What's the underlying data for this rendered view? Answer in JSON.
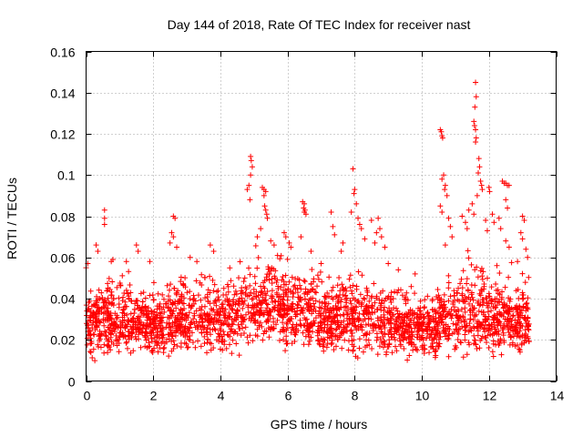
{
  "chart_data": {
    "type": "scatter",
    "title": "Day 144 of 2018, Rate Of TEC Index for receiver nast",
    "xlabel": "GPS time / hours",
    "ylabel": "ROTI / TECUs",
    "xlim": [
      0,
      14
    ],
    "ylim": [
      0,
      0.16
    ],
    "xticks": [
      0,
      2,
      4,
      6,
      8,
      10,
      12,
      14
    ],
    "xtick_labels": [
      "0",
      "2",
      "4",
      "6",
      "8",
      "10",
      "12",
      "14"
    ],
    "yticks": [
      0,
      0.02,
      0.04,
      0.06,
      0.08,
      0.1,
      0.12,
      0.14,
      0.16
    ],
    "ytick_labels": [
      "0",
      "0.02",
      "0.04",
      "0.06",
      "0.08",
      "0.1",
      "0.12",
      "0.14",
      "0.16"
    ],
    "grid": true,
    "marker": "+",
    "color": "#ff0000",
    "x_extent": [
      0,
      13.2
    ],
    "series": [
      {
        "name": "ROTI",
        "envelope": {
          "x": [
            0,
            0.5,
            1,
            1.5,
            2,
            2.5,
            3,
            3.5,
            4,
            4.5,
            5,
            5.5,
            6,
            6.5,
            7,
            7.5,
            8,
            8.5,
            9,
            9.5,
            10,
            10.5,
            11,
            11.5,
            12,
            12.5,
            13,
            13.2
          ],
          "low": [
            0.008,
            0.008,
            0.008,
            0.009,
            0.008,
            0.008,
            0.01,
            0.01,
            0.009,
            0.01,
            0.012,
            0.013,
            0.012,
            0.011,
            0.01,
            0.01,
            0.009,
            0.009,
            0.008,
            0.008,
            0.008,
            0.008,
            0.008,
            0.008,
            0.008,
            0.008,
            0.008,
            0.008
          ],
          "high": [
            0.048,
            0.055,
            0.05,
            0.05,
            0.045,
            0.05,
            0.053,
            0.052,
            0.05,
            0.056,
            0.062,
            0.064,
            0.06,
            0.056,
            0.05,
            0.052,
            0.054,
            0.054,
            0.05,
            0.045,
            0.045,
            0.05,
            0.058,
            0.06,
            0.058,
            0.054,
            0.05,
            0.048
          ],
          "density": 2600
        },
        "points": [
          {
            "x": 0.55,
            "y": 0.083
          },
          {
            "x": 0.55,
            "y": 0.079
          },
          {
            "x": 0.55,
            "y": 0.076
          },
          {
            "x": 0.3,
            "y": 0.066
          },
          {
            "x": 0.35,
            "y": 0.063
          },
          {
            "x": 0.0,
            "y": 0.055
          },
          {
            "x": 0.05,
            "y": 0.057
          },
          {
            "x": 0.75,
            "y": 0.058
          },
          {
            "x": 0.8,
            "y": 0.059
          },
          {
            "x": 1.5,
            "y": 0.066
          },
          {
            "x": 1.55,
            "y": 0.063
          },
          {
            "x": 1.2,
            "y": 0.058
          },
          {
            "x": 1.9,
            "y": 0.058
          },
          {
            "x": 2.6,
            "y": 0.08
          },
          {
            "x": 2.65,
            "y": 0.079
          },
          {
            "x": 2.55,
            "y": 0.072
          },
          {
            "x": 2.6,
            "y": 0.07
          },
          {
            "x": 2.5,
            "y": 0.067
          },
          {
            "x": 2.7,
            "y": 0.065
          },
          {
            "x": 3.1,
            "y": 0.06
          },
          {
            "x": 3.3,
            "y": 0.058
          },
          {
            "x": 3.7,
            "y": 0.066
          },
          {
            "x": 3.8,
            "y": 0.063
          },
          {
            "x": 4.9,
            "y": 0.109
          },
          {
            "x": 4.92,
            "y": 0.107
          },
          {
            "x": 4.95,
            "y": 0.104
          },
          {
            "x": 4.9,
            "y": 0.1
          },
          {
            "x": 4.85,
            "y": 0.095
          },
          {
            "x": 4.8,
            "y": 0.093
          },
          {
            "x": 4.88,
            "y": 0.088
          },
          {
            "x": 5.25,
            "y": 0.094
          },
          {
            "x": 5.3,
            "y": 0.093
          },
          {
            "x": 5.35,
            "y": 0.092
          },
          {
            "x": 5.3,
            "y": 0.09
          },
          {
            "x": 5.32,
            "y": 0.085
          },
          {
            "x": 5.35,
            "y": 0.083
          },
          {
            "x": 5.38,
            "y": 0.081
          },
          {
            "x": 5.4,
            "y": 0.079
          },
          {
            "x": 5.2,
            "y": 0.074
          },
          {
            "x": 5.1,
            "y": 0.07
          },
          {
            "x": 5.5,
            "y": 0.068
          },
          {
            "x": 5.6,
            "y": 0.066
          },
          {
            "x": 5.9,
            "y": 0.072
          },
          {
            "x": 5.95,
            "y": 0.07
          },
          {
            "x": 6.05,
            "y": 0.067
          },
          {
            "x": 6.1,
            "y": 0.065
          },
          {
            "x": 6.45,
            "y": 0.087
          },
          {
            "x": 6.5,
            "y": 0.086
          },
          {
            "x": 6.48,
            "y": 0.084
          },
          {
            "x": 6.52,
            "y": 0.083
          },
          {
            "x": 6.5,
            "y": 0.082
          },
          {
            "x": 6.55,
            "y": 0.081
          },
          {
            "x": 6.4,
            "y": 0.07
          },
          {
            "x": 6.7,
            "y": 0.063
          },
          {
            "x": 7.0,
            "y": 0.057
          },
          {
            "x": 7.3,
            "y": 0.082
          },
          {
            "x": 7.35,
            "y": 0.075
          },
          {
            "x": 7.4,
            "y": 0.071
          },
          {
            "x": 7.6,
            "y": 0.063
          },
          {
            "x": 7.65,
            "y": 0.067
          },
          {
            "x": 7.95,
            "y": 0.103
          },
          {
            "x": 8.0,
            "y": 0.093
          },
          {
            "x": 7.98,
            "y": 0.091
          },
          {
            "x": 8.05,
            "y": 0.086
          },
          {
            "x": 7.9,
            "y": 0.082
          },
          {
            "x": 8.1,
            "y": 0.079
          },
          {
            "x": 8.15,
            "y": 0.076
          },
          {
            "x": 8.2,
            "y": 0.074
          },
          {
            "x": 8.3,
            "y": 0.069
          },
          {
            "x": 8.6,
            "y": 0.067
          },
          {
            "x": 8.65,
            "y": 0.072
          },
          {
            "x": 8.7,
            "y": 0.079
          },
          {
            "x": 8.75,
            "y": 0.074
          },
          {
            "x": 8.8,
            "y": 0.07
          },
          {
            "x": 8.9,
            "y": 0.065
          },
          {
            "x": 8.5,
            "y": 0.078
          },
          {
            "x": 9.0,
            "y": 0.057
          },
          {
            "x": 9.3,
            "y": 0.054
          },
          {
            "x": 9.8,
            "y": 0.052
          },
          {
            "x": 10.55,
            "y": 0.122
          },
          {
            "x": 10.58,
            "y": 0.121
          },
          {
            "x": 10.6,
            "y": 0.119
          },
          {
            "x": 10.62,
            "y": 0.118
          },
          {
            "x": 10.65,
            "y": 0.1
          },
          {
            "x": 10.6,
            "y": 0.098
          },
          {
            "x": 10.7,
            "y": 0.095
          },
          {
            "x": 10.68,
            "y": 0.093
          },
          {
            "x": 10.75,
            "y": 0.09
          },
          {
            "x": 10.55,
            "y": 0.085
          },
          {
            "x": 10.6,
            "y": 0.082
          },
          {
            "x": 10.8,
            "y": 0.079
          },
          {
            "x": 10.85,
            "y": 0.075
          },
          {
            "x": 10.9,
            "y": 0.07
          },
          {
            "x": 10.7,
            "y": 0.066
          },
          {
            "x": 11.2,
            "y": 0.08
          },
          {
            "x": 11.3,
            "y": 0.077
          },
          {
            "x": 11.4,
            "y": 0.083
          },
          {
            "x": 11.35,
            "y": 0.074
          },
          {
            "x": 11.6,
            "y": 0.145
          },
          {
            "x": 11.62,
            "y": 0.138
          },
          {
            "x": 11.58,
            "y": 0.133
          },
          {
            "x": 11.55,
            "y": 0.126
          },
          {
            "x": 11.57,
            "y": 0.124
          },
          {
            "x": 11.6,
            "y": 0.122
          },
          {
            "x": 11.62,
            "y": 0.118
          },
          {
            "x": 11.6,
            "y": 0.116
          },
          {
            "x": 11.7,
            "y": 0.108
          },
          {
            "x": 11.72,
            "y": 0.104
          },
          {
            "x": 11.68,
            "y": 0.101
          },
          {
            "x": 11.75,
            "y": 0.097
          },
          {
            "x": 11.78,
            "y": 0.095
          },
          {
            "x": 11.8,
            "y": 0.093
          },
          {
            "x": 11.65,
            "y": 0.09
          },
          {
            "x": 11.5,
            "y": 0.086
          },
          {
            "x": 11.55,
            "y": 0.081
          },
          {
            "x": 11.9,
            "y": 0.078
          },
          {
            "x": 11.95,
            "y": 0.073
          },
          {
            "x": 12.0,
            "y": 0.094
          },
          {
            "x": 12.02,
            "y": 0.092
          },
          {
            "x": 12.1,
            "y": 0.081
          },
          {
            "x": 12.15,
            "y": 0.077
          },
          {
            "x": 12.4,
            "y": 0.097
          },
          {
            "x": 12.45,
            "y": 0.096
          },
          {
            "x": 12.5,
            "y": 0.096
          },
          {
            "x": 12.55,
            "y": 0.095
          },
          {
            "x": 12.6,
            "y": 0.095
          },
          {
            "x": 12.5,
            "y": 0.088
          },
          {
            "x": 12.55,
            "y": 0.084
          },
          {
            "x": 12.3,
            "y": 0.079
          },
          {
            "x": 12.35,
            "y": 0.074
          },
          {
            "x": 12.5,
            "y": 0.068
          },
          {
            "x": 12.6,
            "y": 0.065
          },
          {
            "x": 13.0,
            "y": 0.08
          },
          {
            "x": 13.05,
            "y": 0.078
          },
          {
            "x": 12.95,
            "y": 0.072
          },
          {
            "x": 13.0,
            "y": 0.069
          },
          {
            "x": 13.1,
            "y": 0.064
          },
          {
            "x": 13.15,
            "y": 0.06
          },
          {
            "x": 12.85,
            "y": 0.058
          }
        ]
      }
    ]
  }
}
